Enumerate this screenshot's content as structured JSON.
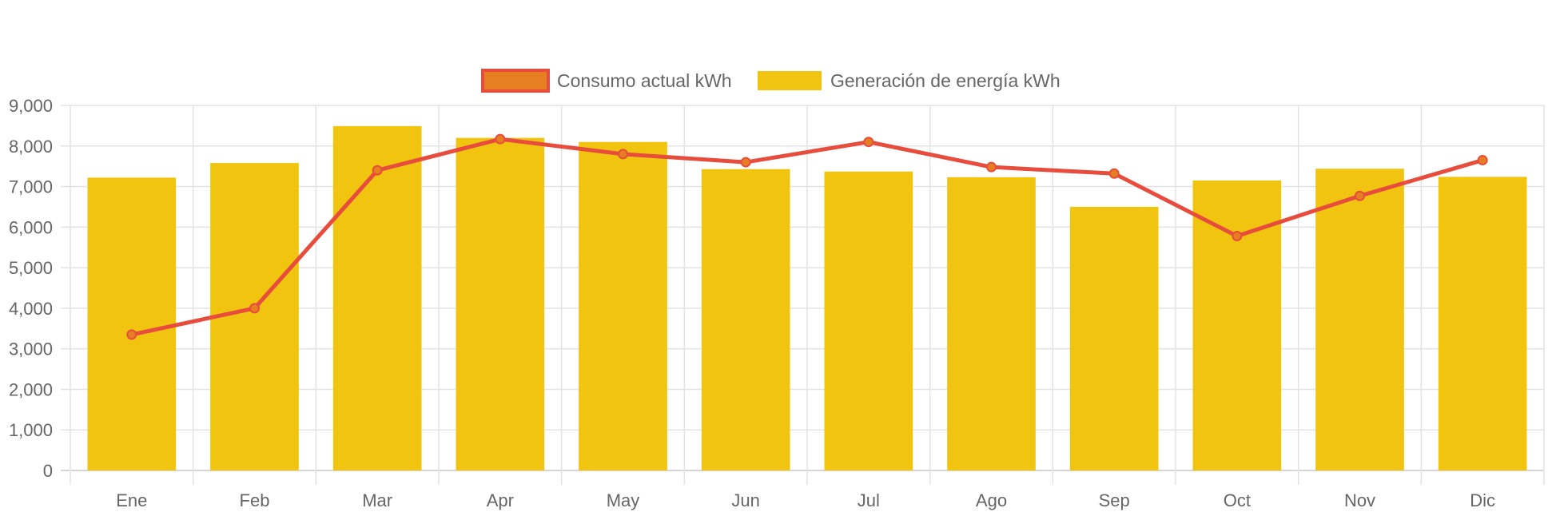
{
  "chart_data": {
    "type": "bar",
    "categories": [
      "Ene",
      "Feb",
      "Mar",
      "Apr",
      "May",
      "Jun",
      "Jul",
      "Ago",
      "Sep",
      "Oct",
      "Nov",
      "Dic"
    ],
    "series": [
      {
        "name": "Consumo actual kWh",
        "type": "line",
        "color": "#e74c3c",
        "point_fill": "#e67e22",
        "values": [
          3350,
          4000,
          7400,
          8170,
          7800,
          7600,
          8100,
          7480,
          7320,
          5780,
          6770,
          7650
        ]
      },
      {
        "name": "Generación de energía kWh",
        "type": "bar",
        "color": "#f1c40f",
        "values": [
          7220,
          7580,
          8490,
          8200,
          8100,
          7430,
          7370,
          7230,
          6500,
          7150,
          7440,
          7240
        ]
      }
    ],
    "y_ticks": [
      "0",
      "1,000",
      "2,000",
      "3,000",
      "4,000",
      "5,000",
      "6,000",
      "7,000",
      "8,000",
      "9,000"
    ],
    "ylim": [
      0,
      9000
    ],
    "grid": true,
    "legend_position": "top"
  }
}
